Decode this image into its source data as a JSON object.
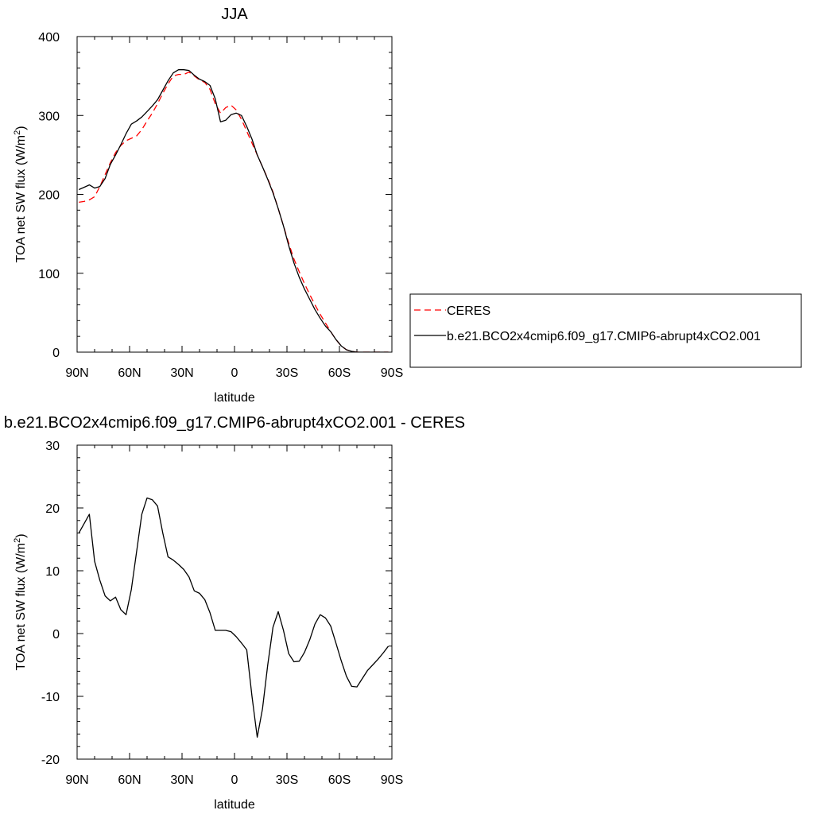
{
  "chart_data": [
    {
      "type": "line",
      "title": "JJA",
      "xlabel": "latitude",
      "ylabel": "TOA net SW flux (W/m",
      "ylabel_sup": "2",
      "ylabel_tail": ")",
      "xlim": [
        90,
        -90
      ],
      "ylim": [
        0,
        400
      ],
      "x_ticks": [
        90,
        60,
        30,
        0,
        -30,
        -60,
        -90
      ],
      "x_tick_labels": [
        "90N",
        "60N",
        "30N",
        "0",
        "30S",
        "60S",
        "90S"
      ],
      "y_ticks": [
        0,
        100,
        200,
        300,
        400
      ],
      "y_tick_labels": [
        "0",
        "100",
        "200",
        "300",
        "400"
      ],
      "legend_position": "right",
      "series": [
        {
          "name": "CERES",
          "color": "#ff0000",
          "dash": "dashed",
          "x": [
            89,
            86,
            83,
            80,
            77,
            74,
            71,
            68,
            65,
            62,
            59,
            56,
            53,
            50,
            47,
            44,
            41,
            38,
            35,
            32,
            29,
            26,
            23,
            20,
            17,
            14,
            11,
            8,
            5,
            2,
            -1,
            -4,
            -7,
            -10,
            -13,
            -16,
            -19,
            -22,
            -25,
            -28,
            -31,
            -34,
            -37,
            -40,
            -43,
            -46,
            -49,
            -52,
            -55,
            -58,
            -61,
            -64,
            -67,
            -70,
            -73,
            -76,
            -79,
            -82,
            -85,
            -88
          ],
          "y": [
            190,
            191,
            193,
            197,
            210,
            225,
            240,
            253,
            262,
            268,
            271,
            274,
            282,
            293,
            303,
            315,
            328,
            340,
            350,
            352,
            352,
            355,
            350,
            345,
            342,
            333,
            315,
            303,
            310,
            313,
            307,
            295,
            280,
            265,
            250,
            235,
            220,
            203,
            182,
            160,
            138,
            118,
            102,
            87,
            73,
            60,
            48,
            37,
            26,
            16,
            8,
            3,
            1,
            0,
            0,
            0,
            0,
            0,
            0,
            0
          ]
        },
        {
          "name": "b.e21.BCO2x4cmip6.f09_g17.CMIP6-abrupt4xCO2.001",
          "color": "#000000",
          "dash": "solid",
          "x": [
            89,
            86,
            83,
            80,
            77,
            74,
            71,
            68,
            65,
            62,
            59,
            56,
            53,
            50,
            47,
            44,
            41,
            38,
            35,
            32,
            29,
            26,
            23,
            20,
            17,
            14,
            11,
            8,
            5,
            2,
            -1,
            -4,
            -7,
            -10,
            -13,
            -16,
            -19,
            -22,
            -25,
            -28,
            -31,
            -34,
            -37,
            -40,
            -43,
            -46,
            -49,
            -52,
            -55,
            -58,
            -61,
            -64,
            -67,
            -70,
            -73,
            -76,
            -79,
            -82,
            -85,
            -88
          ],
          "y": [
            206,
            209,
            212,
            208,
            210,
            220,
            238,
            250,
            263,
            277,
            289,
            293,
            298,
            305,
            312,
            320,
            332,
            344,
            354,
            358,
            358,
            357,
            351,
            346,
            343,
            338,
            321,
            292,
            294,
            301,
            303,
            300,
            286,
            270,
            250,
            235,
            219,
            202,
            182,
            160,
            135,
            113,
            95,
            80,
            67,
            54,
            43,
            33,
            26,
            16,
            8,
            3,
            1,
            0,
            0,
            0,
            0,
            0,
            0,
            0
          ]
        }
      ]
    },
    {
      "type": "line",
      "title": "b.e21.BCO2x4cmip6.f09_g17.CMIP6-abrupt4xCO2.001 - CERES",
      "xlabel": "latitude",
      "ylabel": "TOA net SW flux (W/m",
      "ylabel_sup": "2",
      "ylabel_tail": ")",
      "xlim": [
        90,
        -90
      ],
      "ylim": [
        -20,
        30
      ],
      "x_ticks": [
        90,
        60,
        30,
        0,
        -30,
        -60,
        -90
      ],
      "x_tick_labels": [
        "90N",
        "60N",
        "30N",
        "0",
        "30S",
        "60S",
        "90S"
      ],
      "y_ticks": [
        -20,
        -10,
        0,
        10,
        20,
        30
      ],
      "y_tick_labels": [
        "-20",
        "-10",
        "0",
        "10",
        "20",
        "30"
      ],
      "series": [
        {
          "color": "#000000",
          "dash": "solid",
          "x": [
            89,
            87,
            83,
            80,
            77,
            74,
            71,
            68,
            65,
            62,
            59,
            56,
            53,
            50,
            47,
            44,
            41,
            38,
            35,
            32,
            29,
            26,
            23,
            20,
            17,
            14,
            11,
            8,
            5,
            2,
            -1,
            -4,
            -7,
            -10,
            -13,
            -16,
            -19,
            -22,
            -25,
            -28,
            -31,
            -34,
            -37,
            -40,
            -43,
            -46,
            -49,
            -52,
            -55,
            -58,
            -61,
            -64,
            -67,
            -70,
            -73,
            -76,
            -79,
            -82,
            -85,
            -88
          ],
          "y": [
            16,
            17,
            19,
            11.5,
            8.5,
            6,
            5.2,
            5.8,
            3.8,
            3.0,
            7,
            13,
            19,
            21.6,
            21.3,
            20.3,
            16,
            12.2,
            11.7,
            11.0,
            10.2,
            9.0,
            6.8,
            6.4,
            5.4,
            3.3,
            0.5,
            0.5,
            0.5,
            0.3,
            -0.5,
            -1.5,
            -2.6,
            -10,
            -16.5,
            -12,
            -5,
            1,
            3.5,
            0.5,
            -3.2,
            -4.5,
            -4.4,
            -3.0,
            -1.0,
            1.5,
            3.0,
            2.5,
            1.2,
            -1.5,
            -4.3,
            -6.8,
            -8.4,
            -8.5,
            -7.2,
            -5.9,
            -5.0,
            -4.1,
            -3.1,
            -2.0
          ]
        }
      ]
    }
  ]
}
